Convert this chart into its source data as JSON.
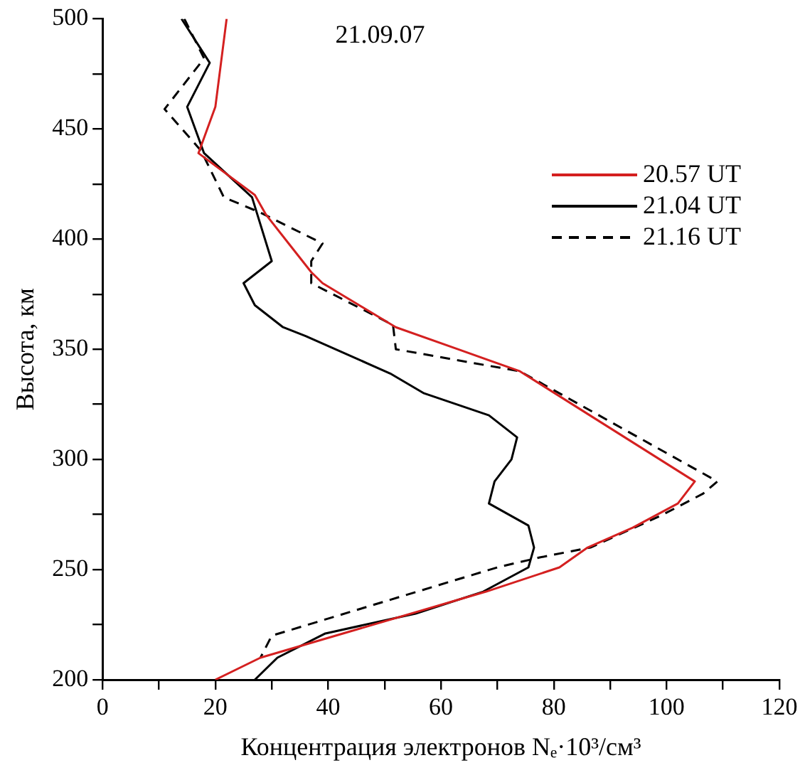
{
  "chart_data": {
    "type": "line",
    "xlabel": "Концентрация электронов Nₑ·10³/см³",
    "ylabel": "Высота, км",
    "annotations": [
      "21.09.07"
    ],
    "xlim": [
      0,
      120
    ],
    "xticks": [
      0,
      {
        "value": 10,
        "label": null
      },
      20,
      {
        "value": 30,
        "label": null
      },
      40,
      {
        "value": 50,
        "label": null
      },
      60,
      {
        "value": 70,
        "label": null
      },
      80,
      {
        "value": 90,
        "label": null
      },
      100,
      {
        "value": 110,
        "label": null
      },
      120
    ],
    "ylim": [
      200,
      500
    ],
    "yticks": [
      200,
      {
        "value": 225,
        "label": null
      },
      250,
      {
        "value": 275,
        "label": null
      },
      300,
      {
        "value": 325,
        "label": null
      },
      350,
      {
        "value": 375,
        "label": null
      },
      400,
      {
        "value": 425,
        "label": null
      },
      450,
      {
        "value": 475,
        "label": null
      },
      500
    ],
    "grid": false,
    "legend": "top right",
    "marker": "none",
    "series": [
      {
        "name": "20.57 UT",
        "color": "#d42020",
        "line_style": "solid",
        "x": [
          22,
          20,
          17,
          27,
          29,
          33,
          37,
          39,
          52,
          63,
          74,
          105,
          102,
          94,
          86,
          81,
          68,
          28,
          20
        ],
        "values": [
          500,
          460,
          439,
          420,
          411,
          398,
          385,
          380,
          360,
          350,
          340,
          290,
          280,
          269,
          260,
          251,
          240,
          210,
          200
        ]
      },
      {
        "name": "21.04 UT",
        "color": "#000000",
        "line_style": "solid",
        "x": [
          14,
          19,
          15,
          18,
          26.5,
          30,
          25,
          27,
          32,
          36,
          51,
          57,
          68.5,
          73.5,
          72.5,
          69.5,
          68.5,
          75.5,
          76.5,
          75.5,
          67.5,
          55.5,
          39.5,
          31,
          27
        ],
        "values": [
          500,
          480,
          460,
          439,
          419,
          390,
          380,
          370,
          360,
          356,
          339,
          330,
          320,
          310,
          300,
          290,
          280,
          270,
          260,
          251,
          240,
          230,
          221,
          210,
          200
        ]
      },
      {
        "name": "21.16 UT",
        "color": "#000000",
        "line_style": "dashed",
        "x": [
          14.5,
          18,
          11,
          17.5,
          21.5,
          28,
          39,
          37,
          37,
          51.5,
          52,
          74,
          109,
          106.5,
          99,
          86.5,
          77.5,
          70,
          30,
          28
        ],
        "values": [
          500,
          482,
          459,
          440,
          419,
          412,
          398,
          390,
          380,
          361,
          350,
          340,
          290,
          284.5,
          274.5,
          260,
          255.5,
          251,
          220,
          210
        ]
      }
    ]
  }
}
